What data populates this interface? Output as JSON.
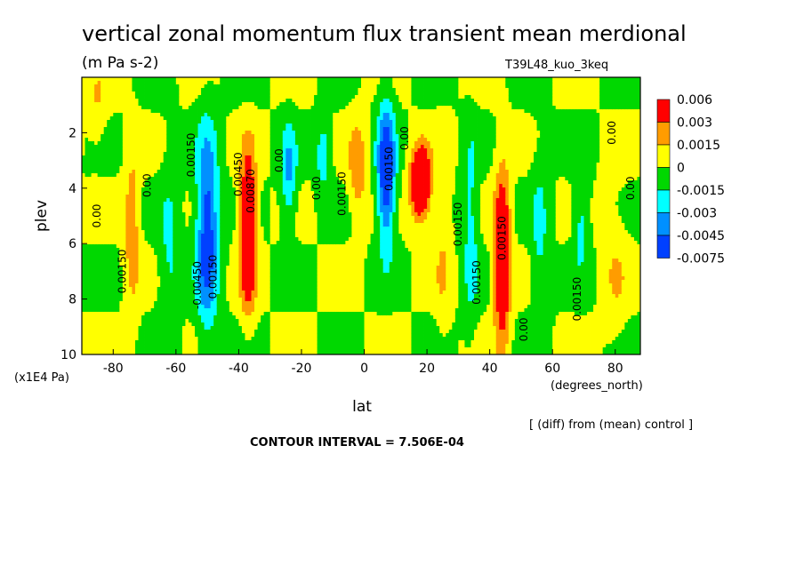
{
  "chart_data": {
    "type": "heatmap",
    "title": "vertical zonal momentum flux transient mean merdional",
    "units": "(m Pa s-2)",
    "experiment": "T39L48_kuo_3keq",
    "xlabel": "lat",
    "xunits": "(degrees_north)",
    "ylabel": "plev",
    "yunits": "(x1E4 Pa)",
    "note": "[ (diff) from (mean) control ]",
    "contour_interval": "CONTOUR INTERVAL = 7.506E-04",
    "xlim": [
      -90,
      88
    ],
    "ylim": [
      10,
      0
    ],
    "x_ticks": [
      "-80",
      "-60",
      "-40",
      "-20",
      "0",
      "20",
      "40",
      "60",
      "80"
    ],
    "y_ticks": [
      "2",
      "4",
      "6",
      "8",
      "10"
    ],
    "legend_labels": [
      "0.006",
      "0.003",
      "0.0015",
      "0",
      "-0.0015",
      "-0.003",
      "-0.0045",
      "-0.0075"
    ],
    "colors": [
      "#ff0000",
      "#ff9c00",
      "#ffff00",
      "#00d800",
      "#00ffff",
      "#0090ff",
      "#0040ff"
    ],
    "contour_levels": [
      -0.0075,
      -0.0045,
      -0.003,
      -0.0015,
      0,
      0.0015,
      0.003,
      0.006
    ],
    "features": [
      {
        "lat": -74,
        "plev": 5.5,
        "value": 0.0025,
        "wlat": 2.5,
        "wp": 3.0
      },
      {
        "lat": -62,
        "plev": 6.5,
        "value": -0.0018,
        "wlat": 3.5,
        "wp": 3.5
      },
      {
        "lat": -50,
        "plev": 5.5,
        "value": -0.0058,
        "wlat": 3.5,
        "wp": 3.5
      },
      {
        "lat": -37,
        "plev": 5.5,
        "value": 0.0072,
        "wlat": 2.5,
        "wp": 2.6
      },
      {
        "lat": -24,
        "plev": 3.5,
        "value": -0.0032,
        "wlat": 2.5,
        "wp": 1.8
      },
      {
        "lat": -13,
        "plev": 2.8,
        "value": -0.0025,
        "wlat": 2.5,
        "wp": 1.3
      },
      {
        "lat": -2,
        "plev": 3.3,
        "value": 0.0025,
        "wlat": 3.0,
        "wp": 1.8
      },
      {
        "lat": 7,
        "plev": 3.5,
        "value": -0.0065,
        "wlat": 2.8,
        "wp": 2.5
      },
      {
        "lat": 18,
        "plev": 3.8,
        "value": 0.0085,
        "wlat": 3.0,
        "wp": 1.2
      },
      {
        "lat": 25,
        "plev": 6.0,
        "value": 0.0014,
        "wlat": 2.5,
        "wp": 3.5
      },
      {
        "lat": 34,
        "plev": 5.5,
        "value": -0.0022,
        "wlat": 2.5,
        "wp": 3.5
      },
      {
        "lat": 44,
        "plev": 6.5,
        "value": 0.0065,
        "wlat": 2.5,
        "wp": 3.0
      },
      {
        "lat": 56,
        "plev": 6.0,
        "value": -0.0018,
        "wlat": 2.8,
        "wp": 3.5
      },
      {
        "lat": 69,
        "plev": 5.0,
        "value": -0.0022,
        "wlat": 2.5,
        "wp": 2.0
      },
      {
        "lat": -85,
        "plev": 1.0,
        "value": 0.0013,
        "wlat": 3.0,
        "wp": 1.5
      },
      {
        "lat": 80,
        "plev": 7.0,
        "value": 0.0012,
        "wlat": 4.0,
        "wp": 3.0
      }
    ],
    "contour_labels": [
      {
        "text": "0.00",
        "lat": -84,
        "plev": 5.0
      },
      {
        "text": "0.00150",
        "lat": -76,
        "plev": 7.0
      },
      {
        "text": "0.00",
        "lat": -68,
        "plev": 3.9
      },
      {
        "text": "0.00150",
        "lat": -54,
        "plev": 2.8
      },
      {
        "text": "-0.00450",
        "lat": -52,
        "plev": 7.5
      },
      {
        "text": "0.00150",
        "lat": -47,
        "plev": 7.2
      },
      {
        "text": "0.00450",
        "lat": -39,
        "plev": 3.5
      },
      {
        "text": "0.00870",
        "lat": -35,
        "plev": 4.1
      },
      {
        "text": "0.00",
        "lat": -26,
        "plev": 3.0
      },
      {
        "text": "0.00",
        "lat": -14,
        "plev": 4.0
      },
      {
        "text": "0.00150",
        "lat": -6,
        "plev": 4.2
      },
      {
        "text": "0.00150",
        "lat": 9,
        "plev": 3.3
      },
      {
        "text": "0.00",
        "lat": 14,
        "plev": 2.2
      },
      {
        "text": "0.00150",
        "lat": 31,
        "plev": 5.3
      },
      {
        "text": "0.00150",
        "lat": 37,
        "plev": 7.4
      },
      {
        "text": "0.00150",
        "lat": 45,
        "plev": 5.8
      },
      {
        "text": "0.00",
        "lat": 52,
        "plev": 9.1
      },
      {
        "text": "0.00150",
        "lat": 69,
        "plev": 8.0
      },
      {
        "text": "0.00",
        "lat": 80,
        "plev": 2.0
      },
      {
        "text": "0.00",
        "lat": 86,
        "plev": 4.0
      }
    ]
  }
}
